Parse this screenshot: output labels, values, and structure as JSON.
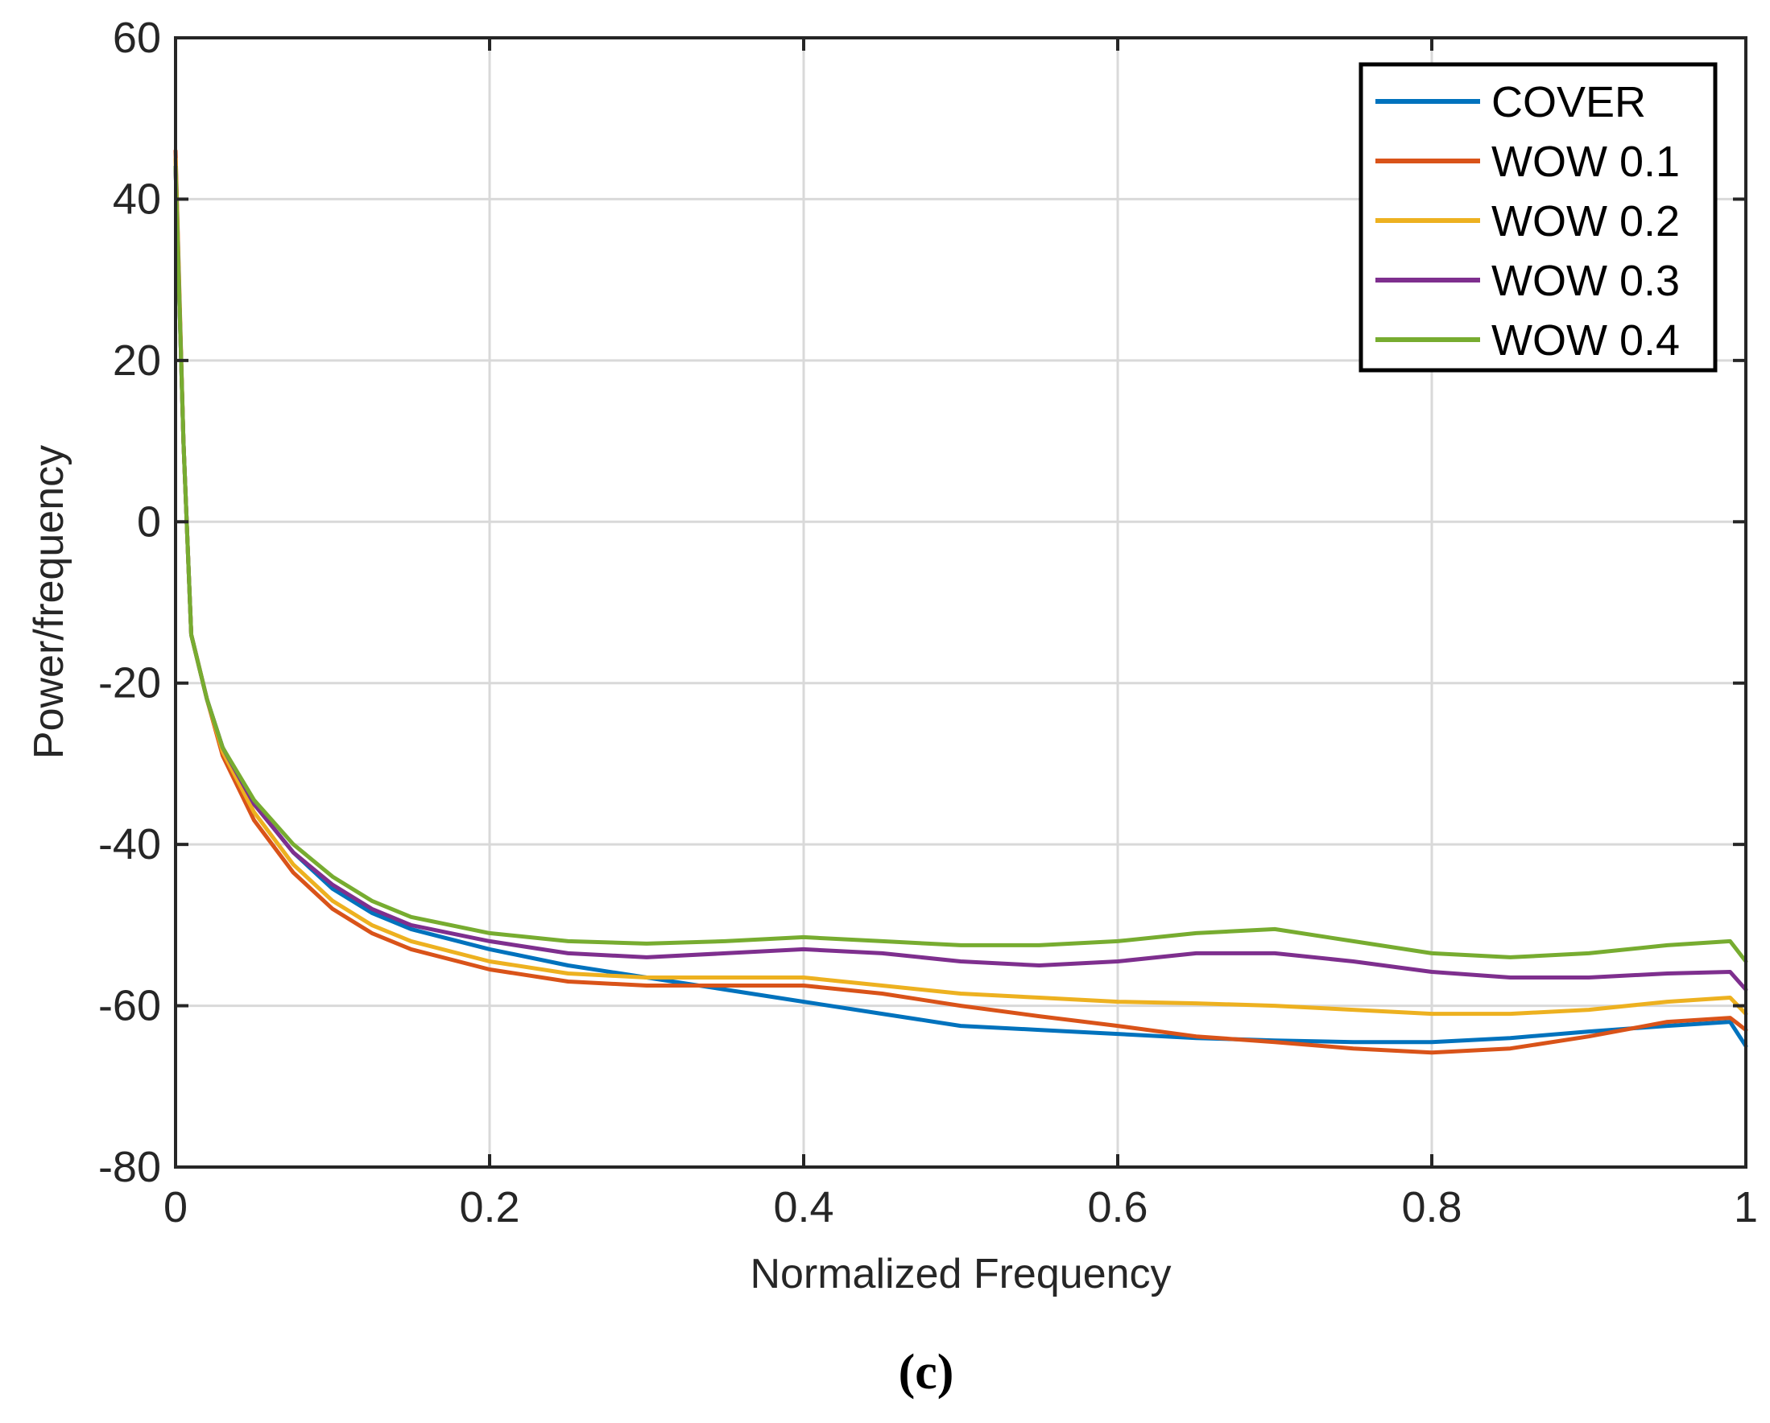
{
  "chart_data": {
    "type": "line",
    "title": "",
    "xlabel": "Normalized Frequency",
    "ylabel": "Power/frequency",
    "xlim": [
      0,
      1
    ],
    "ylim": [
      -80,
      60
    ],
    "xticks": [
      0,
      0.2,
      0.4,
      0.6,
      0.8,
      1
    ],
    "xtick_labels": [
      "0",
      "0.2",
      "0.4",
      "0.6",
      "0.8",
      "1"
    ],
    "yticks": [
      -80,
      -60,
      -40,
      -20,
      0,
      20,
      40,
      60
    ],
    "ytick_labels": [
      "-80",
      "-60",
      "-40",
      "-20",
      "0",
      "20",
      "40",
      "60"
    ],
    "grid": true,
    "legend_position": "top-right",
    "caption": "(c)",
    "x": [
      0,
      0.005,
      0.01,
      0.02,
      0.03,
      0.05,
      0.075,
      0.1,
      0.125,
      0.15,
      0.2,
      0.25,
      0.3,
      0.35,
      0.4,
      0.45,
      0.5,
      0.55,
      0.6,
      0.65,
      0.7,
      0.75,
      0.8,
      0.85,
      0.9,
      0.95,
      0.99,
      1
    ],
    "series": [
      {
        "name": "COVER",
        "color": "#0072BD",
        "values": [
          44,
          10,
          -14,
          -22,
          -28,
          -35,
          -41,
          -45.5,
          -48.5,
          -50.5,
          -53,
          -55,
          -56.5,
          -58,
          -59.5,
          -61,
          -62.5,
          -63,
          -63.5,
          -64,
          -64.3,
          -64.5,
          -64.5,
          -64,
          -63.2,
          -62.5,
          -62,
          -65
        ]
      },
      {
        "name": "WOW 0.1",
        "color": "#D95319",
        "values": [
          46,
          10,
          -14,
          -22,
          -29,
          -37,
          -43.5,
          -48,
          -51,
          -53,
          -55.5,
          -57,
          -57.5,
          -57.5,
          -57.5,
          -58.5,
          -60,
          -61.3,
          -62.5,
          -63.8,
          -64.5,
          -65.3,
          -65.8,
          -65.3,
          -63.8,
          -62,
          -61.5,
          -63
        ]
      },
      {
        "name": "WOW 0.2",
        "color": "#EDB120",
        "values": [
          45,
          10,
          -14,
          -22,
          -28.5,
          -36,
          -42.5,
          -47,
          -50,
          -52,
          -54.5,
          -56,
          -56.5,
          -56.5,
          -56.5,
          -57.5,
          -58.5,
          -59,
          -59.5,
          -59.7,
          -60,
          -60.5,
          -61,
          -61,
          -60.5,
          -59.5,
          -59,
          -61
        ]
      },
      {
        "name": "WOW 0.3",
        "color": "#7E2F8E",
        "values": [
          44,
          10,
          -14,
          -22,
          -28,
          -35,
          -41,
          -45,
          -48,
          -50,
          -52,
          -53.5,
          -54,
          -53.5,
          -53,
          -53.5,
          -54.5,
          -55,
          -54.5,
          -53.5,
          -53.5,
          -54.5,
          -55.8,
          -56.5,
          -56.5,
          -56,
          -55.8,
          -58
        ]
      },
      {
        "name": "WOW 0.4",
        "color": "#77AC30",
        "values": [
          44,
          10,
          -14,
          -22,
          -28,
          -34.5,
          -40,
          -44,
          -47,
          -49,
          -51,
          -52,
          -52.3,
          -52,
          -51.5,
          -52,
          -52.5,
          -52.5,
          -52,
          -51,
          -50.5,
          -52,
          -53.5,
          -54,
          -53.5,
          -52.5,
          -52,
          -54.5
        ]
      }
    ]
  }
}
